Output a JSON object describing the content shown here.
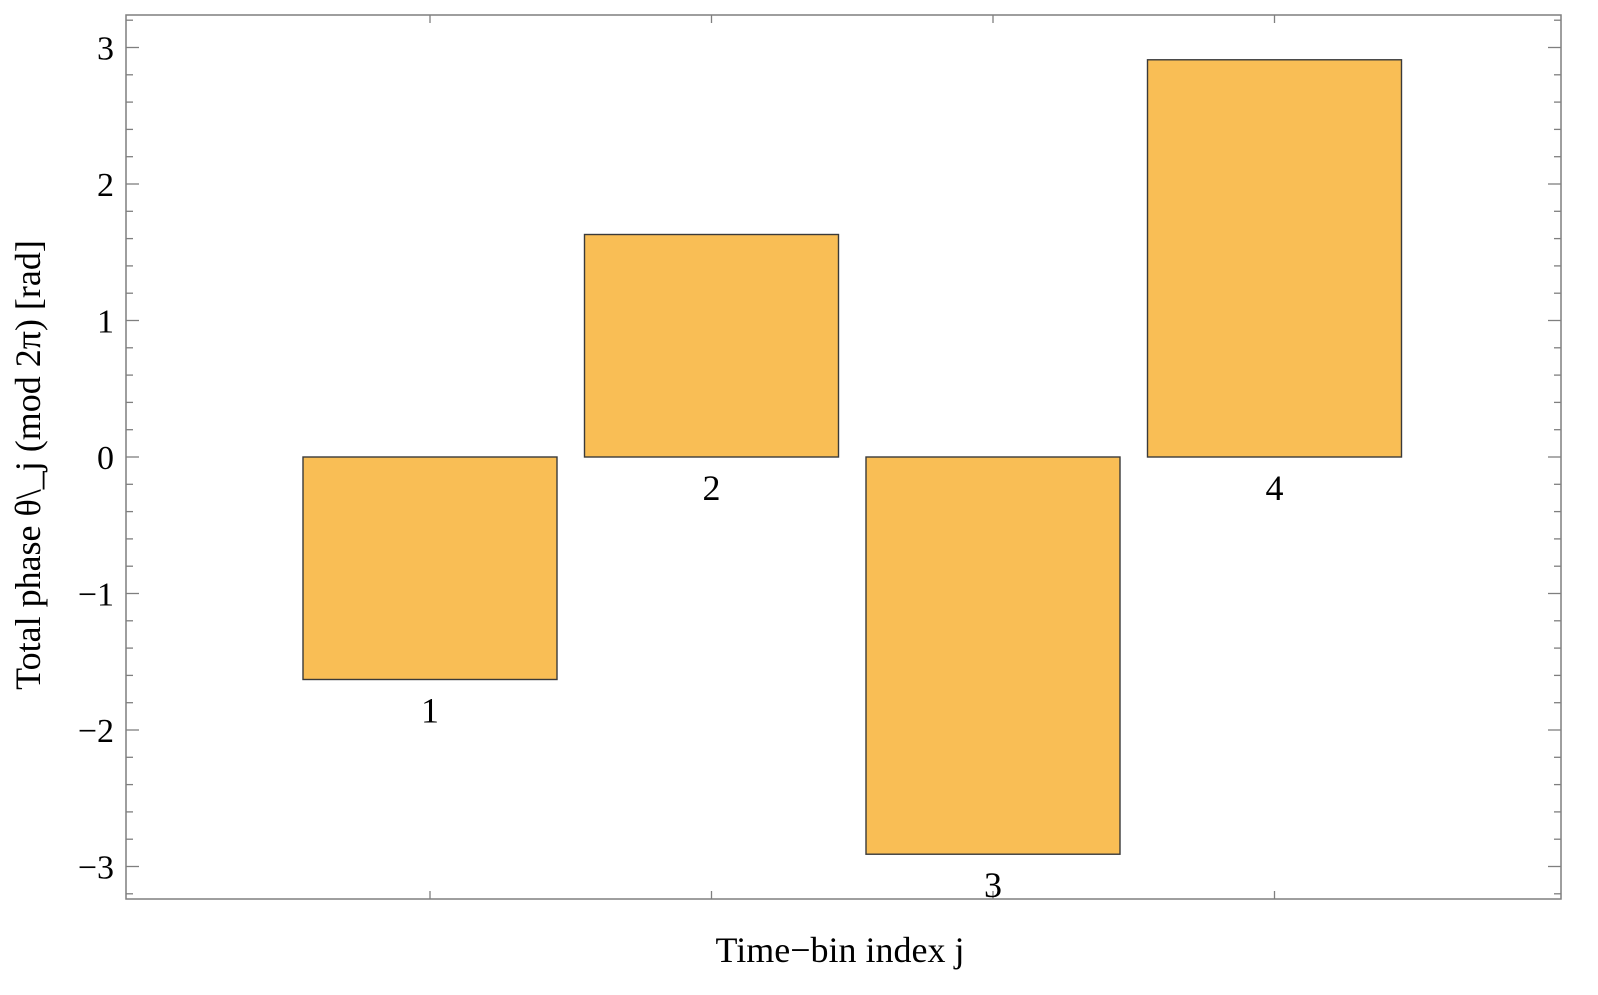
{
  "chart_data": {
    "type": "bar",
    "title": "",
    "xlabel": "Time−bin index  j",
    "ylabel": "Total phase  θ\\_j  (mod 2π)  [rad]",
    "categories": [
      "1",
      "2",
      "3",
      "4"
    ],
    "values": [
      -1.63,
      1.63,
      -2.91,
      2.91
    ],
    "ylim": [
      -3.24,
      3.24
    ],
    "yticks": [
      -3,
      -2,
      -1,
      0,
      1,
      2,
      3
    ],
    "ytick_labels": [
      "−3",
      "−2",
      "−1",
      "0",
      "1",
      "2",
      "3"
    ],
    "bar_color": "#F9BE55",
    "bar_edge_color": "#3a3a3a",
    "frame_color": "#7f7f7f",
    "grid": false,
    "legend": "none"
  }
}
